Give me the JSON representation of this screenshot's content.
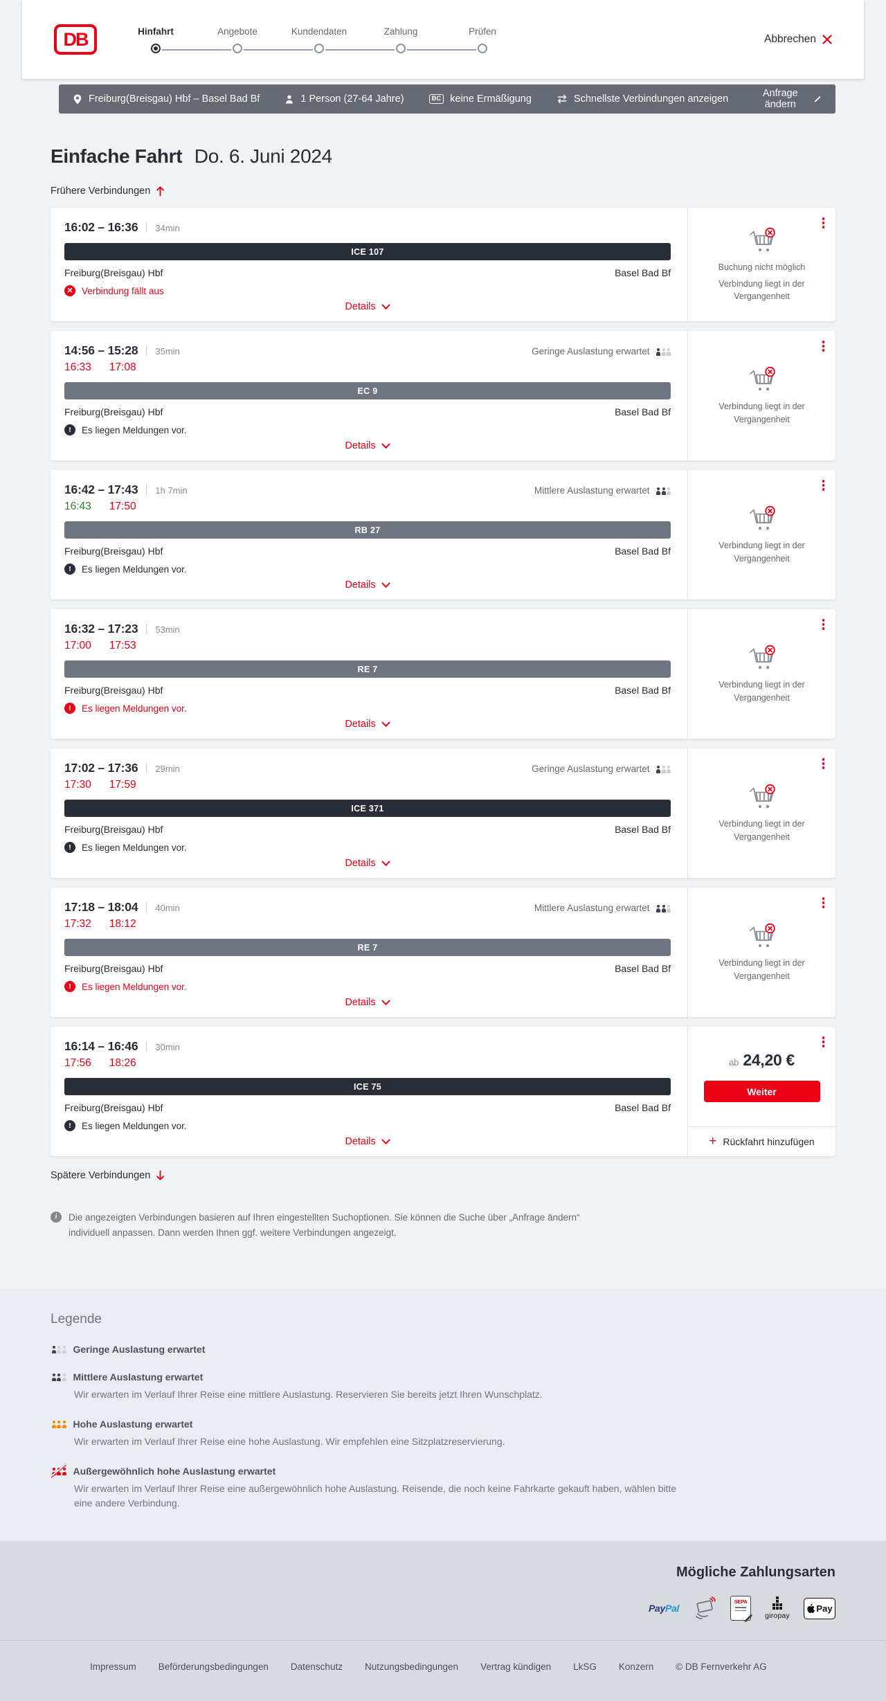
{
  "colors": {
    "db_red": "#ec0016",
    "navy": "#282d37",
    "gray_text": "#646973",
    "summary_bar_bg": "#646973",
    "train_bar_dark": "#282d37",
    "train_bar_gray": "#6f7580",
    "page_bg": "#f0f3f5",
    "legend_bg": "#e9edf1",
    "footer_bg": "#d7dbdf",
    "ontime_green": "#308136",
    "occupancy_high_orange": "#f28c00"
  },
  "header": {
    "logo_text": "DB",
    "steps": [
      {
        "label": "Hinfahrt",
        "state": "active"
      },
      {
        "label": "Angebote",
        "state": "upcoming"
      },
      {
        "label": "Kundendaten",
        "state": "upcoming"
      },
      {
        "label": "Zahlung",
        "state": "upcoming"
      },
      {
        "label": "Prüfen",
        "state": "upcoming"
      }
    ],
    "cancel_label": "Abbrechen"
  },
  "summary_bar": {
    "route": "Freiburg(Breisgau) Hbf – Basel Bad Bf",
    "passengers": "1 Person (27-64 Jahre)",
    "discount_badge": "BC",
    "discount": "keine Ermäßigung",
    "connection_filter": "Schnellste Verbindungen anzeigen",
    "edit_request": "Anfrage ändern"
  },
  "page": {
    "trip_type": "Einfache Fahrt",
    "date": "Do. 6. Juni 2024",
    "earlier_link": "Frühere Verbindungen",
    "later_link": "Spätere Verbindungen",
    "info_note": "Die angezeigten Verbindungen basieren auf Ihren eingestellten Suchoptionen. Sie können die Suche über „Anfrage ändern“ individuell anpassen. Dann werden Ihnen ggf. weitere Verbindungen angezeigt."
  },
  "connections": [
    {
      "departure": "16:02",
      "arrival": "16:36",
      "duration": "34min",
      "delayed": null,
      "train": "ICE 107",
      "train_style": "dark",
      "from": "Freiburg(Breisgau) Hbf",
      "to": "Basel Bad Bf",
      "occupancy": null,
      "message": {
        "text": "Verbindung fällt aus",
        "severity": "cancelled"
      },
      "details_label": "Details",
      "booking": {
        "type": "unavailable",
        "lines": [
          "Buchung nicht möglich",
          "Verbindung liegt in der Vergangenheit"
        ]
      }
    },
    {
      "departure": "14:56",
      "arrival": "15:28",
      "duration": "35min",
      "delayed": {
        "departure": {
          "time": "16:33",
          "status": "late"
        },
        "arrival": {
          "time": "17:08",
          "status": "late"
        }
      },
      "train": "EC 9",
      "train_style": "gray",
      "from": "Freiburg(Breisgau) Hbf",
      "to": "Basel Bad Bf",
      "occupancy": {
        "label": "Geringe Auslastung erwartet",
        "level": "low"
      },
      "message": {
        "text": "Es liegen Meldungen vor.",
        "severity": "info"
      },
      "details_label": "Details",
      "booking": {
        "type": "unavailable",
        "lines": [
          "Verbindung liegt in der Vergangenheit"
        ]
      }
    },
    {
      "departure": "16:42",
      "arrival": "17:43",
      "duration": "1h 7min",
      "delayed": {
        "departure": {
          "time": "16:43",
          "status": "ontime"
        },
        "arrival": {
          "time": "17:50",
          "status": "late"
        }
      },
      "train": "RB 27",
      "train_style": "gray",
      "from": "Freiburg(Breisgau) Hbf",
      "to": "Basel Bad Bf",
      "occupancy": {
        "label": "Mittlere Auslastung erwartet",
        "level": "medium"
      },
      "message": {
        "text": "Es liegen Meldungen vor.",
        "severity": "info"
      },
      "details_label": "Details",
      "booking": {
        "type": "unavailable",
        "lines": [
          "Verbindung liegt in der Vergangenheit"
        ]
      }
    },
    {
      "departure": "16:32",
      "arrival": "17:23",
      "duration": "53min",
      "delayed": {
        "departure": {
          "time": "17:00",
          "status": "late"
        },
        "arrival": {
          "time": "17:53",
          "status": "late"
        }
      },
      "train": "RE 7",
      "train_style": "gray",
      "from": "Freiburg(Breisgau) Hbf",
      "to": "Basel Bad Bf",
      "occupancy": null,
      "message": {
        "text": "Es liegen Meldungen vor.",
        "severity": "warning"
      },
      "details_label": "Details",
      "booking": {
        "type": "unavailable",
        "lines": [
          "Verbindung liegt in der Vergangenheit"
        ]
      }
    },
    {
      "departure": "17:02",
      "arrival": "17:36",
      "duration": "29min",
      "delayed": {
        "departure": {
          "time": "17:30",
          "status": "late"
        },
        "arrival": {
          "time": "17:59",
          "status": "late"
        }
      },
      "train": "ICE 371",
      "train_style": "dark",
      "from": "Freiburg(Breisgau) Hbf",
      "to": "Basel Bad Bf",
      "occupancy": {
        "label": "Geringe Auslastung erwartet",
        "level": "low"
      },
      "message": {
        "text": "Es liegen Meldungen vor.",
        "severity": "info"
      },
      "details_label": "Details",
      "booking": {
        "type": "unavailable",
        "lines": [
          "Verbindung liegt in der Vergangenheit"
        ]
      }
    },
    {
      "departure": "17:18",
      "arrival": "18:04",
      "duration": "40min",
      "delayed": {
        "departure": {
          "time": "17:32",
          "status": "late"
        },
        "arrival": {
          "time": "18:12",
          "status": "late"
        }
      },
      "train": "RE 7",
      "train_style": "gray",
      "from": "Freiburg(Breisgau) Hbf",
      "to": "Basel Bad Bf",
      "occupancy": {
        "label": "Mittlere Auslastung erwartet",
        "level": "medium"
      },
      "message": {
        "text": "Es liegen Meldungen vor.",
        "severity": "warning"
      },
      "details_label": "Details",
      "booking": {
        "type": "unavailable",
        "lines": [
          "Verbindung liegt in der Vergangenheit"
        ]
      }
    },
    {
      "departure": "16:14",
      "arrival": "16:46",
      "duration": "30min",
      "delayed": {
        "departure": {
          "time": "17:56",
          "status": "late"
        },
        "arrival": {
          "time": "18:26",
          "status": "late"
        }
      },
      "train": "ICE 75",
      "train_style": "dark",
      "from": "Freiburg(Breisgau) Hbf",
      "to": "Basel Bad Bf",
      "occupancy": null,
      "message": {
        "text": "Es liegen Meldungen vor.",
        "severity": "info"
      },
      "details_label": "Details",
      "booking": {
        "type": "price",
        "prefix": "ab",
        "amount": "24,20 €",
        "button_label": "Weiter",
        "add_return_label": "Rückfahrt hinzufügen"
      }
    }
  ],
  "legend": {
    "title": "Legende",
    "items": [
      {
        "label": "Geringe Auslastung erwartet",
        "level": "low",
        "description": ""
      },
      {
        "label": "Mittlere Auslastung erwartet",
        "level": "medium",
        "description": "Wir erwarten im Verlauf Ihrer Reise eine mittlere Auslastung. Reservieren Sie bereits jetzt Ihren Wunschplatz."
      },
      {
        "label": "Hohe Auslastung erwartet",
        "level": "high",
        "description": "Wir erwarten im Verlauf Ihrer Reise eine hohe Auslastung. Wir empfehlen eine Sitzplatzreservierung."
      },
      {
        "label": "Außergewöhnlich hohe Auslastung erwartet",
        "level": "exceptional",
        "description": "Wir erwarten im Verlauf Ihrer Reise eine außergewöhnlich hohe Auslastung. Reisende, die noch keine Fahrkarte gekauft haben, wählen bitte eine andere Verbindung."
      }
    ]
  },
  "payment": {
    "title": "Mögliche Zahlungsarten",
    "methods": [
      {
        "name": "PayPal",
        "text_a": "Pay",
        "text_b": "Pal"
      },
      {
        "name": "Kreditkarte",
        "text": ""
      },
      {
        "name": "SEPA-Lastschrift",
        "text": "SEPA"
      },
      {
        "name": "giropay",
        "text": "giropay"
      },
      {
        "name": "Apple Pay",
        "text": "Pay"
      }
    ]
  },
  "footer": {
    "links": [
      "Impressum",
      "Beförderungsbedingungen",
      "Datenschutz",
      "Nutzungsbedingungen",
      "Vertrag kündigen",
      "LkSG",
      "Konzern"
    ],
    "copyright": "© DB Fernverkehr AG"
  }
}
